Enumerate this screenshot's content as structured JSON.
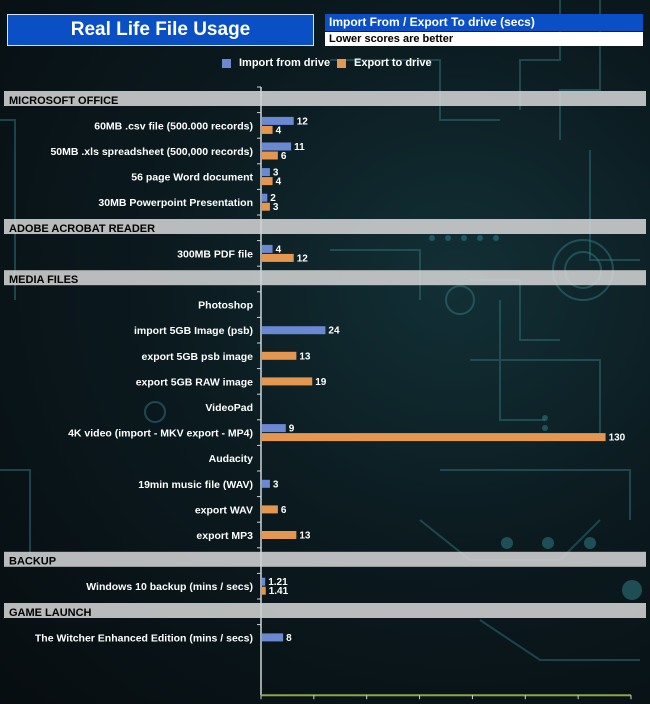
{
  "header": {
    "title": "Real Life File Usage",
    "subtitle": "Import From  / Export To drive (secs)",
    "note": "Lower scores are better"
  },
  "colors": {
    "import": "#6b89d2",
    "export": "#e5964f",
    "section_band": "#d8d8d8",
    "title_bg": "#0a4fc4"
  },
  "chart_data": {
    "type": "bar",
    "orientation": "horizontal",
    "xlim": [
      0,
      140
    ],
    "xticks": [
      0,
      20,
      40,
      60,
      80,
      100,
      120,
      140
    ],
    "grid": false,
    "legend_position": "top",
    "series": [
      {
        "name": "Import from drive",
        "color": "#6b89d2"
      },
      {
        "name": "Export to drive",
        "color": "#e5964f"
      }
    ],
    "rows": [
      {
        "kind": "section",
        "label": "MICROSOFT OFFICE"
      },
      {
        "kind": "item",
        "label": "60MB .csv file (500.000 records)",
        "import": 12,
        "export": 4
      },
      {
        "kind": "item",
        "label": "50MB .xls spreadsheet (500,000 records)",
        "import": 11,
        "export": 6
      },
      {
        "kind": "item",
        "label": "56 page Word document",
        "import": 3,
        "export": 4
      },
      {
        "kind": "item",
        "label": "30MB Powerpoint Presentation",
        "import": 2,
        "export": 3
      },
      {
        "kind": "section",
        "label": "ADOBE ACROBAT READER"
      },
      {
        "kind": "item",
        "label": "300MB PDF file",
        "import": 4,
        "export": 12
      },
      {
        "kind": "section",
        "label": "MEDIA FILES"
      },
      {
        "kind": "item",
        "label": "Photoshop"
      },
      {
        "kind": "item",
        "label": "import 5GB Image (psb)",
        "import": 24
      },
      {
        "kind": "item",
        "label": "export 5GB psb image",
        "export": 13
      },
      {
        "kind": "item",
        "label": "export 5GB RAW image",
        "export": 19
      },
      {
        "kind": "item",
        "label": "VideoPad"
      },
      {
        "kind": "item",
        "label": "4K video (import - MKV  export -  MP4)",
        "import": 9,
        "export": 130
      },
      {
        "kind": "item",
        "label": "Audacity"
      },
      {
        "kind": "item",
        "label": "19min music file (WAV)",
        "import": 3
      },
      {
        "kind": "item",
        "label": "export WAV",
        "export": 6
      },
      {
        "kind": "item",
        "label": "export MP3",
        "export": 13
      },
      {
        "kind": "section",
        "label": "BACKUP"
      },
      {
        "kind": "item",
        "label": "Windows 10 backup (mins / secs)",
        "import": 1.21,
        "export": 1.41
      },
      {
        "kind": "section",
        "label": "GAME LAUNCH"
      },
      {
        "kind": "item",
        "label": "The Witcher Enhanced Edition (mins / secs)",
        "import": 8
      }
    ]
  }
}
